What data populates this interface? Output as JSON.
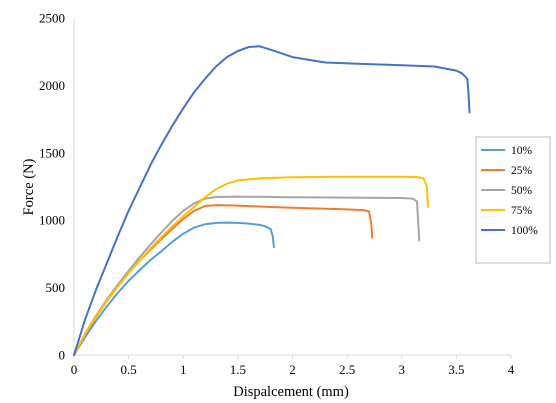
{
  "chart_data": {
    "type": "line",
    "title": "",
    "xlabel": "Dispalcement (mm)",
    "ylabel": "Force (N)",
    "xlim": [
      0,
      4
    ],
    "ylim": [
      0,
      2500
    ],
    "xticks": [
      0,
      0.5,
      1,
      1.5,
      2,
      2.5,
      3,
      3.5,
      4
    ],
    "xtick_labels": [
      "0",
      "0.5",
      "1",
      "1.5",
      "2",
      "2.5",
      "3",
      "3.5",
      "4"
    ],
    "yticks": [
      0,
      500,
      1000,
      1500,
      2000,
      2500
    ],
    "ytick_labels": [
      "0",
      "500",
      "1000",
      "1500",
      "2000",
      "2500"
    ],
    "grid": false,
    "legend_position": "right",
    "series": [
      {
        "name": "10%",
        "color": "#5b9bd5",
        "x": [
          0,
          0.1,
          0.2,
          0.3,
          0.4,
          0.5,
          0.6,
          0.7,
          0.8,
          0.9,
          1.0,
          1.1,
          1.2,
          1.3,
          1.4,
          1.5,
          1.6,
          1.7,
          1.75,
          1.8,
          1.82,
          1.83
        ],
        "y": [
          0,
          130,
          250,
          360,
          460,
          550,
          630,
          705,
          770,
          840,
          900,
          945,
          970,
          980,
          982,
          980,
          975,
          965,
          955,
          935,
          880,
          800
        ]
      },
      {
        "name": "25%",
        "color": "#ed7d31",
        "x": [
          0,
          0.1,
          0.2,
          0.3,
          0.4,
          0.5,
          0.6,
          0.7,
          0.8,
          0.9,
          1.0,
          1.1,
          1.2,
          1.3,
          1.5,
          1.8,
          2.0,
          2.3,
          2.5,
          2.65,
          2.7,
          2.72,
          2.73
        ],
        "y": [
          0,
          150,
          280,
          400,
          510,
          610,
          700,
          780,
          860,
          935,
          1010,
          1070,
          1105,
          1112,
          1108,
          1098,
          1092,
          1085,
          1080,
          1075,
          1065,
          980,
          870
        ]
      },
      {
        "name": "50%",
        "color": "#a5a5a5",
        "x": [
          0,
          0.1,
          0.2,
          0.3,
          0.4,
          0.5,
          0.6,
          0.7,
          0.8,
          0.9,
          1.0,
          1.1,
          1.2,
          1.3,
          1.5,
          2.0,
          2.5,
          3.0,
          3.1,
          3.14,
          3.15,
          3.16
        ],
        "y": [
          0,
          155,
          290,
          410,
          520,
          625,
          725,
          820,
          910,
          995,
          1070,
          1125,
          1160,
          1172,
          1175,
          1170,
          1168,
          1165,
          1160,
          1140,
          1000,
          850
        ]
      },
      {
        "name": "75%",
        "color": "#ffc000",
        "x": [
          0,
          0.1,
          0.2,
          0.3,
          0.4,
          0.5,
          0.6,
          0.7,
          0.8,
          0.9,
          1.0,
          1.1,
          1.2,
          1.3,
          1.4,
          1.5,
          1.7,
          2.0,
          2.5,
          3.0,
          3.15,
          3.2,
          3.23,
          3.24
        ],
        "y": [
          0,
          155,
          285,
          400,
          505,
          605,
          700,
          790,
          875,
          955,
          1030,
          1100,
          1170,
          1230,
          1270,
          1295,
          1310,
          1318,
          1322,
          1323,
          1320,
          1310,
          1250,
          1100
        ]
      },
      {
        "name": "100%",
        "color": "#4472c4",
        "x": [
          0,
          0.05,
          0.1,
          0.2,
          0.3,
          0.4,
          0.5,
          0.6,
          0.7,
          0.8,
          0.9,
          1.0,
          1.1,
          1.2,
          1.3,
          1.4,
          1.5,
          1.6,
          1.7,
          1.8,
          2.0,
          2.3,
          2.6,
          3.0,
          3.3,
          3.5,
          3.55,
          3.6,
          3.61,
          3.62
        ],
        "y": [
          0,
          130,
          260,
          480,
          680,
          880,
          1070,
          1240,
          1410,
          1560,
          1700,
          1830,
          1950,
          2050,
          2140,
          2210,
          2255,
          2285,
          2290,
          2265,
          2210,
          2170,
          2160,
          2150,
          2140,
          2110,
          2090,
          2050,
          1950,
          1800
        ]
      }
    ]
  }
}
